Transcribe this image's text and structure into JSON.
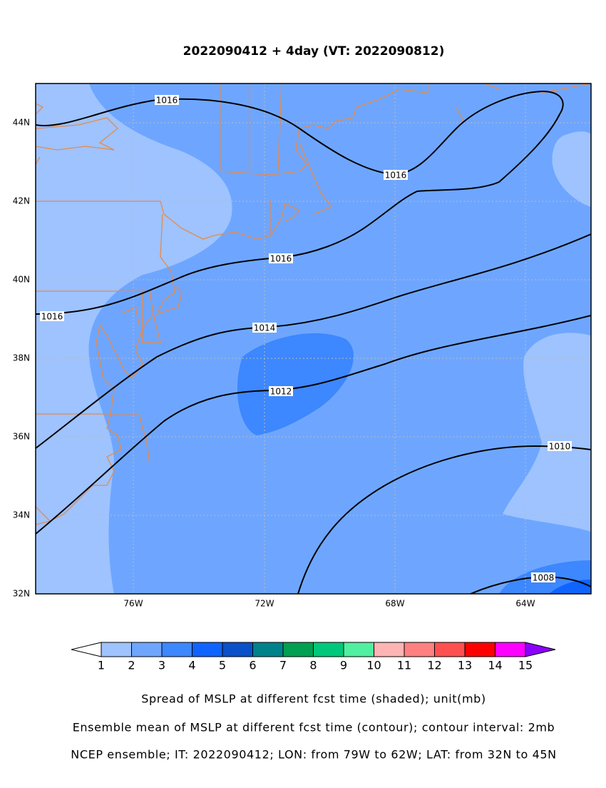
{
  "title": "2022090412 + 4day (VT: 2022090812)",
  "lon_ticks": [
    "76W",
    "72W",
    "68W",
    "64W"
  ],
  "lat_ticks": [
    "44N",
    "42N",
    "40N",
    "38N",
    "36N",
    "34N",
    "32N"
  ],
  "contour_labels": [
    "1016",
    "1016",
    "1016",
    "1016",
    "1014",
    "1012",
    "1010",
    "1008"
  ],
  "colorbar": {
    "labels": [
      "1",
      "2",
      "3",
      "4",
      "5",
      "6",
      "7",
      "8",
      "9",
      "10",
      "11",
      "12",
      "13",
      "14",
      "15"
    ],
    "colors": [
      "#ffffff",
      "#9ec3ff",
      "#6ea6ff",
      "#3d87ff",
      "#0f64ff",
      "#0a50c8",
      "#00828a",
      "#00a050",
      "#00c87a",
      "#50f0a0",
      "#ffb4b4",
      "#ff8080",
      "#ff5050",
      "#ff0000",
      "#ff00ff",
      "#8c00ff"
    ]
  },
  "captions": [
    "Spread of MSLP at different fcst time (shaded); unit(mb)",
    "Ensemble mean of MSLP at different fcst time (contour); contour interval: 2mb",
    "NCEP ensemble; IT: 2022090412; LON: from 79W to 62W; LAT: from 32N to 45N"
  ]
}
